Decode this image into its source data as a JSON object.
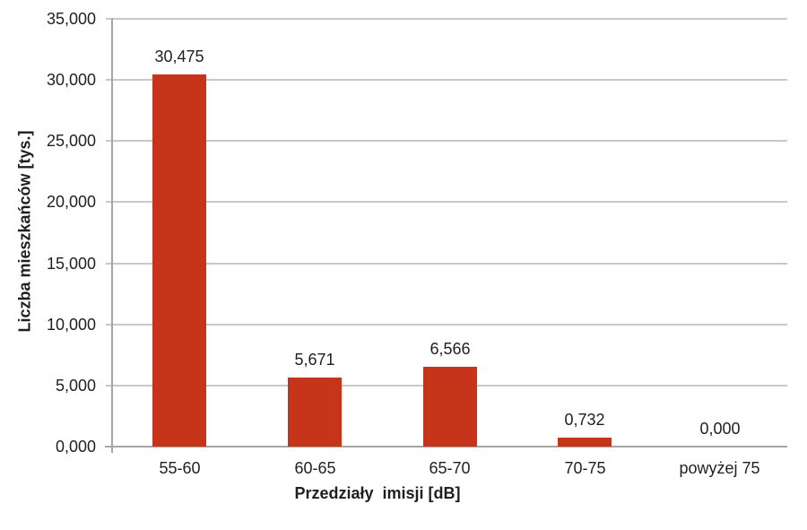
{
  "figure": {
    "background": "#ffffff"
  },
  "chart_data": {
    "type": "bar",
    "title": "",
    "categories": [
      "55-60",
      "60-65",
      "65-70",
      "70-75",
      "powyżej 75"
    ],
    "values": [
      30.475,
      5.671,
      6.566,
      0.732,
      0.0
    ],
    "value_labels": [
      "30,475",
      "5,671",
      "6,566",
      "0,732",
      "0,000"
    ],
    "xlabel": "Przedziały  imisji [dB]",
    "ylabel": "Liczba mieszkańców [tys.]",
    "ylim": [
      0,
      35
    ],
    "ytick_step": 5,
    "ytick_labels": [
      "0,000",
      "5,000",
      "10,000",
      "15,000",
      "20,000",
      "25,000",
      "30,000",
      "35,000"
    ],
    "grid": true,
    "legend": "none",
    "colors": {
      "bar": "#c6341a",
      "gridline": "#c8c8c8",
      "axis": "#a6a6a6",
      "text": "#1f1f1f"
    }
  }
}
